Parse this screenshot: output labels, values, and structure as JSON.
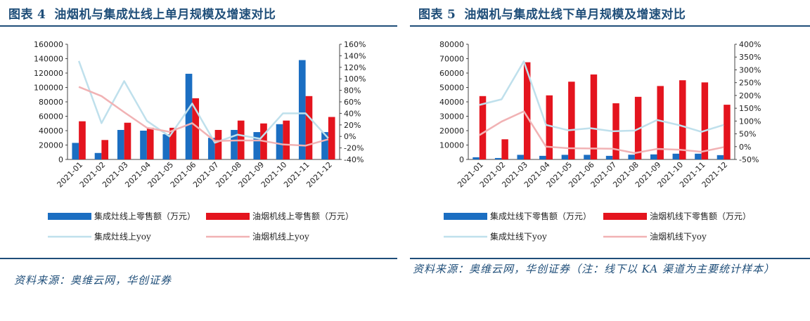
{
  "colors": {
    "blue": "#1b6ec2",
    "red": "#e4141e",
    "lightblue": "#bfe0ec",
    "pink": "#f1b2b4",
    "title": "#1f4e79"
  },
  "figures": [
    {
      "label": "图表",
      "number": "4",
      "title": "油烟机与集成灶线上单月规模及增速对比",
      "source": "资料来源：奥维云网，华创证券"
    },
    {
      "label": "图表",
      "number": "5",
      "title": "油烟机与集成灶线下单月规模及增速对比",
      "source": "资料来源：奥维云网，华创证券（注：线下以 KA 渠道为主要统计样本）"
    }
  ],
  "chart_data": [
    {
      "type": "bar",
      "categories": [
        "2021-01",
        "2021-02",
        "2021-03",
        "2021-04",
        "2021-05",
        "2021-06",
        "2021-07",
        "2021-08",
        "2021-09",
        "2021-10",
        "2021-11",
        "2021-12"
      ],
      "ylim": [
        0,
        160000
      ],
      "y2lim": [
        -40,
        160
      ],
      "yticks": [
        "0",
        "20000",
        "40000",
        "60000",
        "80000",
        "100000",
        "120000",
        "140000",
        "160000"
      ],
      "y2ticks": [
        "-40%",
        "-20%",
        "0%",
        "20%",
        "40%",
        "60%",
        "80%",
        "100%",
        "120%",
        "140%",
        "160%"
      ],
      "series": [
        {
          "name": "集成灶线上零售额（万元）",
          "kind": "bar",
          "axis": "left",
          "color": "#1b6ec2",
          "values": [
            23000,
            9000,
            41000,
            40000,
            35000,
            119000,
            30000,
            41000,
            38000,
            49000,
            138000,
            38000
          ]
        },
        {
          "name": "油烟机线上零售额（万元）",
          "kind": "bar",
          "axis": "left",
          "color": "#e4141e",
          "values": [
            53000,
            27000,
            51000,
            44000,
            44000,
            85000,
            41000,
            54000,
            50000,
            54000,
            88000,
            59000
          ]
        },
        {
          "name": "集成灶线上yoy",
          "kind": "line",
          "axis": "right",
          "color": "#bfe0ec",
          "values": [
            131,
            23,
            96,
            27,
            0,
            57,
            -11,
            3,
            -4,
            40,
            40,
            -3
          ]
        },
        {
          "name": "油烟机线上yoy",
          "kind": "line",
          "axis": "right",
          "color": "#f1b2b4",
          "values": [
            86,
            70,
            42,
            15,
            8,
            23,
            -8,
            -7,
            -7,
            -14,
            -16,
            -5
          ]
        }
      ]
    },
    {
      "type": "bar",
      "categories": [
        "2021-01",
        "2021-02",
        "2021-03",
        "2021-04",
        "2021-05",
        "2021-06",
        "2021-07",
        "2021-08",
        "2021-09",
        "2021-10",
        "2021-11",
        "2021-12"
      ],
      "ylim": [
        0,
        80000
      ],
      "y2lim": [
        -50,
        400
      ],
      "yticks": [
        "0",
        "10000",
        "20000",
        "30000",
        "40000",
        "50000",
        "60000",
        "70000",
        "80000"
      ],
      "y2ticks": [
        "-50%",
        "0%",
        "50%",
        "100%",
        "150%",
        "200%",
        "250%",
        "300%",
        "350%",
        "400%"
      ],
      "series": [
        {
          "name": "集成灶线下零售额（万元）",
          "kind": "bar",
          "axis": "left",
          "color": "#1b6ec2",
          "values": [
            1500,
            1000,
            3200,
            2500,
            3200,
            3200,
            2500,
            3300,
            3500,
            4000,
            4000,
            3000
          ]
        },
        {
          "name": "油烟机线下零售额（万元）",
          "kind": "bar",
          "axis": "left",
          "color": "#e4141e",
          "values": [
            44000,
            14000,
            67500,
            44500,
            54000,
            59000,
            39000,
            43500,
            51000,
            55000,
            53500,
            38000
          ]
        },
        {
          "name": "集成灶线下yoy",
          "kind": "line",
          "axis": "right",
          "color": "#bfe0ec",
          "values": [
            163,
            185,
            333,
            85,
            64,
            72,
            60,
            63,
            104,
            84,
            58,
            85
          ]
        },
        {
          "name": "油烟机线下yoy",
          "kind": "line",
          "axis": "right",
          "color": "#f1b2b4",
          "values": [
            45,
            98,
            138,
            0,
            -6,
            -7,
            -8,
            -25,
            -9,
            -12,
            -20,
            -2
          ]
        }
      ]
    }
  ]
}
